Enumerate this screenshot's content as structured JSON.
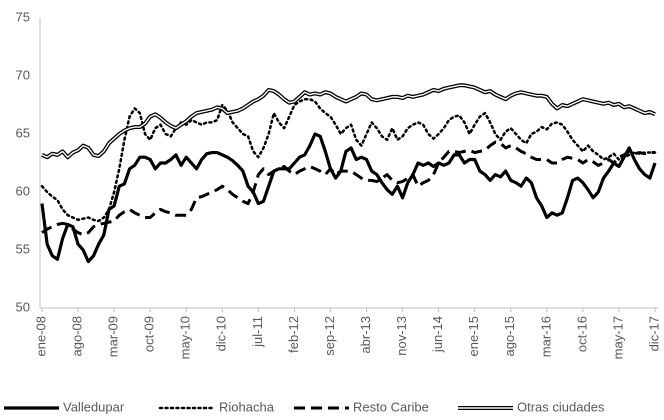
{
  "chart_data": {
    "type": "line",
    "categories": [
      "ene-08",
      null,
      null,
      null,
      null,
      null,
      null,
      "ago-08",
      null,
      null,
      null,
      null,
      null,
      null,
      "mar-09",
      null,
      null,
      null,
      null,
      null,
      null,
      "oct-09",
      null,
      null,
      null,
      null,
      null,
      null,
      "may-10",
      null,
      null,
      null,
      null,
      null,
      null,
      "dic-10",
      null,
      null,
      null,
      null,
      null,
      null,
      "jul-11",
      null,
      null,
      null,
      null,
      null,
      null,
      "feb-12",
      null,
      null,
      null,
      null,
      null,
      null,
      "sep-12",
      null,
      null,
      null,
      null,
      null,
      null,
      "abr-13",
      null,
      null,
      null,
      null,
      null,
      null,
      "nov-13",
      null,
      null,
      null,
      null,
      null,
      null,
      "jun-14",
      null,
      null,
      null,
      null,
      null,
      null,
      "ene-15",
      null,
      null,
      null,
      null,
      null,
      null,
      "ago-15",
      null,
      null,
      null,
      null,
      null,
      null,
      "mar-16",
      null,
      null,
      null,
      null,
      null,
      null,
      "oct-16",
      null,
      null,
      null,
      null,
      null,
      null,
      "may-17",
      null,
      null,
      null,
      null,
      null,
      null,
      "dic-17"
    ],
    "series": [
      {
        "name": "Valledupar",
        "color": "#000000",
        "line_style": "solid",
        "values": [
          59.0,
          55.5,
          54.5,
          54.2,
          56.0,
          57.2,
          57.0,
          55.5,
          55.0,
          54.0,
          54.5,
          55.5,
          56.3,
          58.5,
          58.8,
          60.5,
          60.7,
          62.0,
          62.3,
          63.0,
          63.0,
          62.8,
          62.0,
          62.5,
          62.5,
          62.8,
          63.2,
          62.3,
          63.0,
          62.5,
          62.0,
          62.8,
          63.3,
          63.4,
          63.4,
          63.2,
          63.0,
          62.7,
          62.3,
          61.8,
          60.5,
          60.0,
          59.0,
          59.2,
          60.5,
          61.8,
          62.0,
          62.0,
          62.0,
          62.5,
          63.0,
          63.2,
          64.0,
          65.0,
          64.8,
          63.5,
          62.0,
          61.2,
          61.8,
          63.5,
          63.8,
          62.8,
          63.0,
          62.8,
          61.8,
          61.5,
          60.8,
          60.2,
          59.8,
          60.5,
          59.5,
          60.8,
          61.5,
          62.5,
          62.3,
          62.5,
          62.2,
          62.5,
          62.3,
          62.5,
          63.2,
          63.2,
          62.5,
          62.8,
          62.8,
          61.8,
          61.5,
          61.0,
          61.5,
          61.3,
          61.8,
          61.0,
          60.8,
          60.5,
          61.2,
          60.8,
          59.5,
          58.8,
          57.8,
          58.2,
          58.0,
          58.2,
          59.5,
          61.0,
          61.2,
          60.8,
          60.2,
          59.5,
          60.0,
          61.2,
          61.8,
          62.5,
          62.2,
          63.0,
          63.8,
          62.8,
          62.0,
          61.5,
          61.2,
          62.5
        ]
      },
      {
        "name": "Riohacha",
        "color": "#000000",
        "line_style": "dotted",
        "values": [
          60.5,
          60.0,
          59.6,
          59.3,
          58.5,
          58.0,
          57.8,
          57.6,
          57.7,
          57.8,
          57.6,
          57.5,
          57.8,
          58.5,
          60.0,
          62.0,
          64.5,
          66.5,
          67.2,
          66.8,
          65.0,
          64.5,
          65.5,
          65.8,
          65.0,
          64.8,
          65.5,
          66.0,
          65.8,
          66.2,
          66.0,
          65.8,
          66.0,
          66.0,
          66.2,
          67.5,
          67.0,
          66.0,
          65.5,
          65.0,
          64.8,
          63.5,
          63.0,
          63.8,
          65.0,
          66.8,
          66.0,
          65.5,
          66.5,
          67.5,
          67.8,
          68.0,
          68.0,
          67.8,
          67.2,
          66.8,
          66.5,
          65.8,
          65.0,
          65.5,
          65.8,
          64.5,
          64.0,
          65.0,
          66.0,
          65.5,
          64.8,
          64.5,
          65.5,
          64.5,
          64.8,
          65.5,
          65.8,
          66.0,
          65.8,
          65.0,
          64.6,
          65.0,
          65.5,
          66.2,
          66.5,
          66.6,
          66.0,
          65.0,
          65.8,
          66.5,
          66.8,
          66.0,
          65.0,
          64.5,
          65.2,
          65.5,
          65.0,
          64.5,
          64.2,
          65.0,
          65.2,
          65.6,
          65.4,
          65.9,
          66.0,
          65.8,
          65.2,
          64.5,
          64.0,
          63.5,
          64.0,
          63.5,
          63.2,
          62.8,
          63.0,
          63.3,
          62.8,
          63.0,
          63.2,
          63.4,
          63.3,
          63.4,
          63.4,
          63.4
        ]
      },
      {
        "name": "Resto Caribe",
        "color": "#000000",
        "line_style": "dashed",
        "values": [
          56.5,
          56.8,
          57.0,
          57.2,
          57.3,
          57.2,
          56.8,
          56.5,
          56.3,
          56.5,
          57.0,
          57.2,
          57.3,
          57.4,
          57.5,
          58.0,
          58.3,
          58.5,
          58.2,
          58.0,
          57.8,
          57.8,
          58.2,
          58.5,
          58.3,
          58.2,
          58.0,
          58.0,
          58.0,
          58.5,
          59.5,
          59.6,
          59.8,
          60.0,
          60.2,
          60.5,
          60.2,
          59.8,
          59.5,
          59.2,
          59.0,
          60.0,
          61.5,
          62.0,
          61.5,
          61.8,
          62.0,
          62.2,
          61.8,
          61.5,
          61.8,
          62.0,
          62.2,
          62.0,
          61.8,
          61.5,
          62.0,
          61.5,
          61.8,
          61.8,
          61.8,
          61.5,
          61.2,
          61.0,
          61.0,
          60.9,
          61.2,
          61.5,
          61.0,
          60.8,
          60.9,
          61.2,
          61.5,
          60.5,
          60.8,
          61.0,
          61.5,
          62.5,
          63.0,
          63.5,
          63.5,
          63.4,
          63.5,
          63.6,
          63.4,
          63.5,
          63.6,
          64.0,
          64.3,
          64.2,
          63.8,
          64.0,
          63.8,
          63.5,
          63.3,
          63.0,
          62.8,
          62.8,
          62.8,
          62.5,
          62.5,
          62.8,
          63.0,
          62.9,
          62.8,
          62.5,
          62.8,
          62.6,
          62.3,
          62.5,
          62.8,
          62.5,
          63.0,
          63.2,
          63.5,
          63.3,
          63.4,
          63.3,
          63.4,
          63.4
        ]
      },
      {
        "name": "Otras ciudades",
        "color": "#000000",
        "line_style": "double",
        "values": [
          63.2,
          63.0,
          63.3,
          63.2,
          63.5,
          63.0,
          63.4,
          63.6,
          64.0,
          63.8,
          63.2,
          63.1,
          63.5,
          64.2,
          64.6,
          65.0,
          65.3,
          65.5,
          65.6,
          65.6,
          65.9,
          66.5,
          66.7,
          66.4,
          66.0,
          65.7,
          65.5,
          65.8,
          66.1,
          66.5,
          66.8,
          66.9,
          67.0,
          67.1,
          67.3,
          67.2,
          66.8,
          66.9,
          67.0,
          67.2,
          67.5,
          67.8,
          68.0,
          68.3,
          68.8,
          68.7,
          68.4,
          68.0,
          67.7,
          67.8,
          68.2,
          68.6,
          68.4,
          68.5,
          68.4,
          68.6,
          68.5,
          68.2,
          68.0,
          67.8,
          68.0,
          68.2,
          68.5,
          68.4,
          68.0,
          67.9,
          68.0,
          68.1,
          68.2,
          68.2,
          68.1,
          68.3,
          68.2,
          68.3,
          68.4,
          68.6,
          68.8,
          68.7,
          68.9,
          69.0,
          69.1,
          69.2,
          69.2,
          69.1,
          69.0,
          68.8,
          68.6,
          68.7,
          68.4,
          68.2,
          68.0,
          68.3,
          68.5,
          68.6,
          68.5,
          68.4,
          68.3,
          68.3,
          68.2,
          67.6,
          67.2,
          67.5,
          67.4,
          67.6,
          67.8,
          68.0,
          67.9,
          67.8,
          67.7,
          67.6,
          67.7,
          67.5,
          67.6,
          67.3,
          67.4,
          67.2,
          67.0,
          66.8,
          66.9,
          66.7
        ]
      }
    ],
    "ylim": [
      50,
      75
    ],
    "yticks": [
      50,
      55,
      60,
      65,
      70,
      75
    ],
    "grid": false,
    "legend": "bottom"
  }
}
